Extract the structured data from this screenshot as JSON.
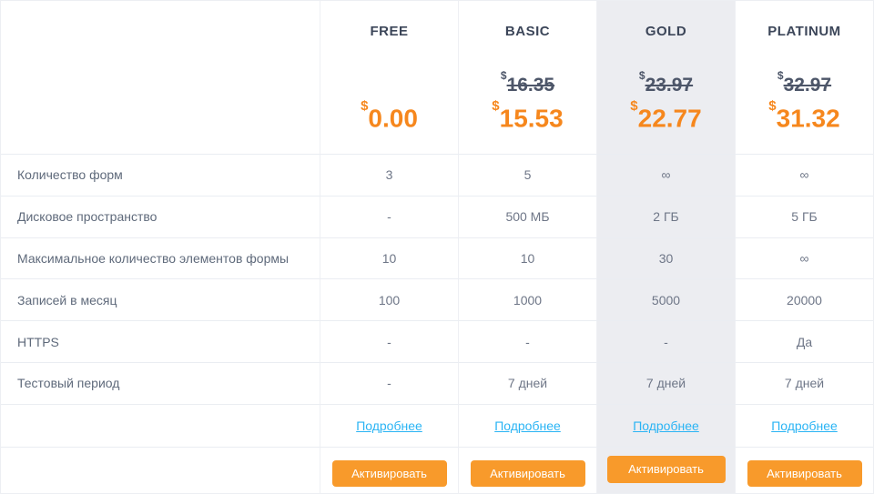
{
  "currency": "$",
  "colors": {
    "price_orange": "#f6871d",
    "button_orange": "#f89a2b",
    "link_blue": "#2ab4f4",
    "highlight_column_bg": "#ecedf1"
  },
  "plans": [
    {
      "name": "FREE",
      "old_price": "",
      "price": "0.00",
      "highlight": false
    },
    {
      "name": "BASIC",
      "old_price": "16.35",
      "price": "15.53",
      "highlight": false
    },
    {
      "name": "GOLD",
      "old_price": "23.97",
      "price": "22.77",
      "highlight": true
    },
    {
      "name": "PLATINUM",
      "old_price": "32.97",
      "price": "31.32",
      "highlight": false
    }
  ],
  "features": [
    {
      "label": "Количество форм",
      "values": [
        "3",
        "5",
        "∞",
        "∞"
      ]
    },
    {
      "label": "Дисковое пространство",
      "values": [
        "-",
        "500 МБ",
        "2 ГБ",
        "5 ГБ"
      ]
    },
    {
      "label": "Максимальное количество элементов формы",
      "values": [
        "10",
        "10",
        "30",
        "∞"
      ]
    },
    {
      "label": "Записей в месяц",
      "values": [
        "100",
        "1000",
        "5000",
        "20000"
      ]
    },
    {
      "label": "HTTPS",
      "values": [
        "-",
        "-",
        "-",
        "Да"
      ]
    },
    {
      "label": "Тестовый период",
      "values": [
        "-",
        "7 дней",
        "7 дней",
        "7 дней"
      ]
    }
  ],
  "details_label": "Подробнее",
  "activate_label": "Активировать"
}
